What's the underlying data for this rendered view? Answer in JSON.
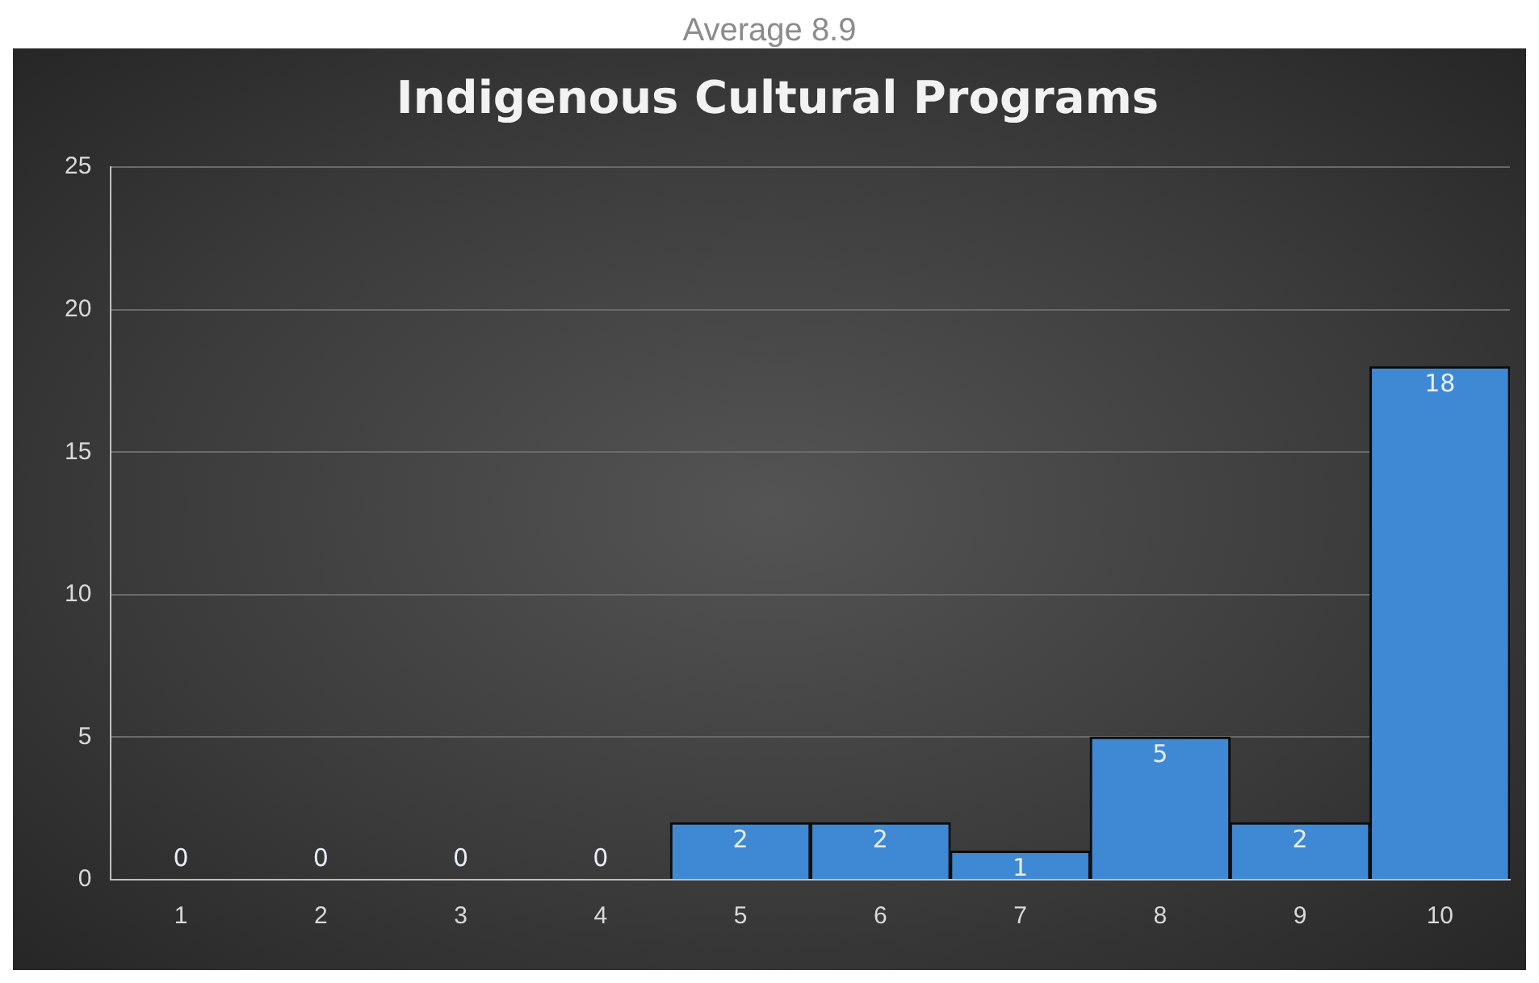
{
  "chart_data": {
    "type": "bar",
    "title": "Indigenous Cultural Programs",
    "annotations": [
      "Average 8.9"
    ],
    "categories": [
      "1",
      "2",
      "3",
      "4",
      "5",
      "6",
      "7",
      "8",
      "9",
      "10"
    ],
    "values": [
      0,
      0,
      0,
      0,
      2,
      2,
      1,
      5,
      2,
      18
    ],
    "color": "#3f88d4",
    "ylim": [
      0,
      25
    ],
    "yticks": [
      0,
      5,
      10,
      15,
      20,
      25
    ],
    "grid": "y",
    "data_labels": true,
    "legend": false
  }
}
